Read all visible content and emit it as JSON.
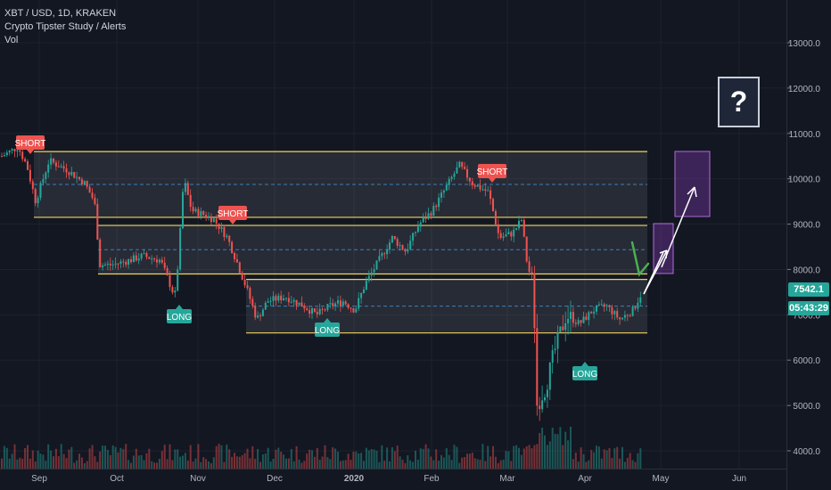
{
  "legend": {
    "symbol_line": "XBT / USD, 1D, KRAKEN",
    "study_line": "Crypto Tipster Study / Alerts",
    "vol_line": "Vol"
  },
  "question_box": {
    "label": "?"
  },
  "last_price": {
    "value": "7542.1",
    "color": "#26a69a"
  },
  "countdown": {
    "value": "05:43:29",
    "color": "#26a69a"
  },
  "colors": {
    "background": "#131722",
    "up": "#26a69a",
    "down": "#ef5350",
    "channel_line": "#f0d45c",
    "mid_dash": "#3d7fb8",
    "projection": "#b06cd8"
  },
  "chart_data": {
    "type": "candlestick",
    "y_ticks": [
      "13000.0",
      "12000.0",
      "11000.0",
      "10000.0",
      "9000.0",
      "8000.0",
      "7000.0",
      "6000.0",
      "5000.0",
      "4000.0"
    ],
    "x_ticks": [
      "Sep",
      "Oct",
      "Nov",
      "Dec",
      "2020",
      "Feb",
      "Mar",
      "Apr",
      "May",
      "Jun"
    ],
    "ylim": [
      3800,
      13500
    ],
    "channels": [
      {
        "upper": 10600,
        "lower": 9150,
        "mid": 9875
      },
      {
        "upper": 8970,
        "lower": 7900,
        "mid": 8435
      },
      {
        "upper": 7780,
        "lower": 6600,
        "mid": 7190
      }
    ],
    "signals": [
      {
        "label": "SHORT",
        "date": "Aug 25",
        "price": 10750,
        "type": "short"
      },
      {
        "label": "LONG",
        "date": "Oct 24",
        "price": 7300,
        "type": "long"
      },
      {
        "label": "SHORT",
        "date": "Nov 8",
        "price": 9250,
        "type": "short"
      },
      {
        "label": "LONG",
        "date": "Dec 18",
        "price": 6650,
        "type": "long"
      },
      {
        "label": "SHORT",
        "date": "Feb 14",
        "price": 10300,
        "type": "short"
      },
      {
        "label": "LONG",
        "date": "Apr 2",
        "price": 6100,
        "type": "long"
      }
    ]
  }
}
